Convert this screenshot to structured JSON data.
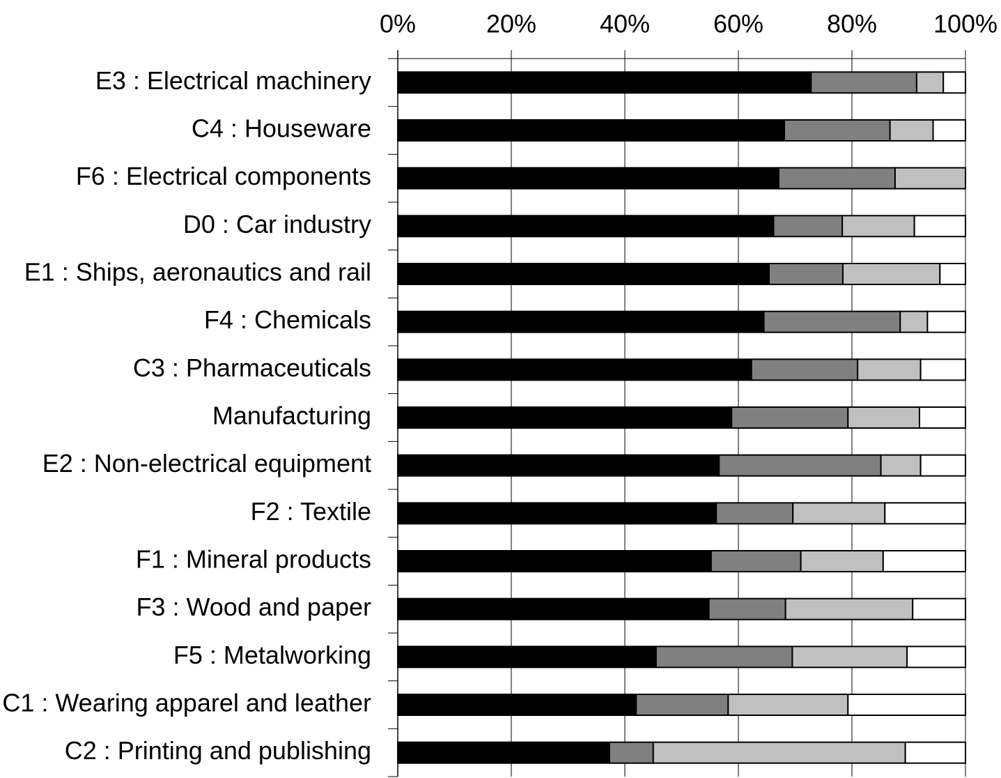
{
  "chart_data": {
    "type": "bar",
    "orientation": "horizontal",
    "stacked": true,
    "normalized": true,
    "title": "",
    "xlabel": "",
    "ylabel": "",
    "xlim": [
      0,
      100
    ],
    "x_tick_labels": [
      "0%",
      "20%",
      "40%",
      "60%",
      "80%",
      "100%"
    ],
    "x_tick_values": [
      0,
      20,
      40,
      60,
      80,
      100
    ],
    "x_axis_position": "top",
    "grid": true,
    "legend": "none",
    "categories": [
      "E3 : Electrical machinery",
      "C4 : Houseware",
      "F6 : Electrical components",
      "D0 : Car industry",
      "E1 : Ships, aeronautics and rail",
      "F4 : Chemicals",
      "C3 : Pharmaceuticals",
      "Manufacturing",
      "E2 : Non-electrical equipment",
      "F2 : Textile",
      "F1 : Mineral products",
      "F3 : Wood and paper",
      "F5 : Metalworking",
      "C1 : Wearing apparel and leather",
      "C2 : Printing and publishing"
    ],
    "series": [
      {
        "color": "#000000",
        "values": [
          72.8,
          68.1,
          67.1,
          66.2,
          65.4,
          64.5,
          62.3,
          58.8,
          56.6,
          56.1,
          55.2,
          54.8,
          45.5,
          42.0,
          37.3
        ]
      },
      {
        "color": "#808080",
        "values": [
          18.6,
          18.6,
          20.5,
          12.1,
          13.0,
          24.0,
          18.7,
          20.5,
          28.5,
          13.5,
          15.8,
          13.5,
          24.0,
          16.2,
          7.7
        ]
      },
      {
        "color": "#c0c0c0",
        "values": [
          4.7,
          7.6,
          12.4,
          12.7,
          17.1,
          4.8,
          11.1,
          12.6,
          7.0,
          16.2,
          14.5,
          22.4,
          20.2,
          21.1,
          44.4
        ]
      },
      {
        "color": "#ffffff",
        "values": [
          3.9,
          5.7,
          0.0,
          9.0,
          4.5,
          6.7,
          7.9,
          8.1,
          7.9,
          14.2,
          14.5,
          9.3,
          10.3,
          20.7,
          10.6
        ]
      }
    ]
  }
}
